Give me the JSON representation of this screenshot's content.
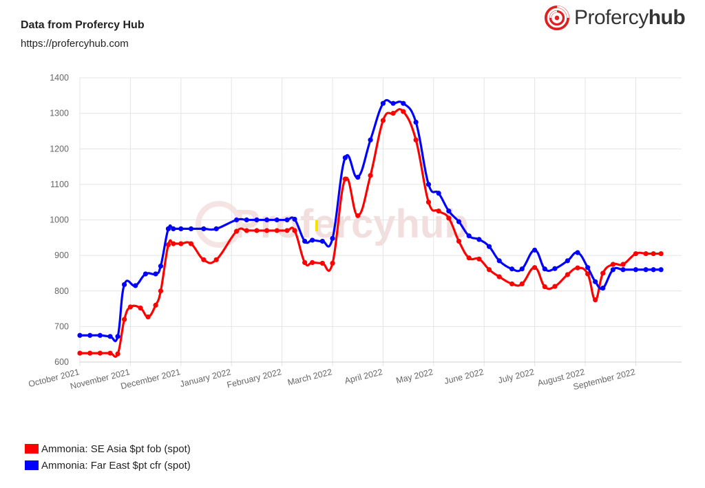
{
  "header": {
    "title": "Data from Profercy Hub",
    "url": "https://profercyhub.com"
  },
  "brand": {
    "name_part1": "Profercy",
    "name_part2": "hub",
    "logo_icon": "profercy-swirl-logo",
    "accent": "#e02020"
  },
  "chart_data": {
    "type": "line",
    "ylim": [
      600,
      1400
    ],
    "yticks": [
      600,
      700,
      800,
      900,
      1000,
      1100,
      1200,
      1300,
      1400
    ],
    "grid": true,
    "xticks": [
      "October 2021",
      "November 2021",
      "December 2021",
      "January 2022",
      "February 2022",
      "March 2022",
      "April 2022",
      "May 2022",
      "June 2022",
      "July 2022",
      "August 2022",
      "September 2022"
    ],
    "legend_position": "bottom-left",
    "series": [
      {
        "name": "Ammonia: SE Asia $pt fob (spot)",
        "color": "#ff0000",
        "points": [
          [
            0.0,
            625
          ],
          [
            0.2,
            625
          ],
          [
            0.4,
            625
          ],
          [
            0.6,
            625
          ],
          [
            0.75,
            623
          ],
          [
            0.88,
            720
          ],
          [
            1.0,
            755
          ],
          [
            1.2,
            752
          ],
          [
            1.35,
            727
          ],
          [
            1.5,
            760
          ],
          [
            1.6,
            800
          ],
          [
            1.75,
            930
          ],
          [
            1.85,
            933
          ],
          [
            2.0,
            933
          ],
          [
            2.2,
            933
          ],
          [
            2.45,
            888
          ],
          [
            2.7,
            888
          ],
          [
            3.1,
            968
          ],
          [
            3.3,
            970
          ],
          [
            3.5,
            970
          ],
          [
            3.7,
            970
          ],
          [
            3.9,
            970
          ],
          [
            4.1,
            970
          ],
          [
            4.25,
            970
          ],
          [
            4.45,
            880
          ],
          [
            4.6,
            880
          ],
          [
            4.8,
            878
          ],
          [
            5.0,
            878
          ],
          [
            5.25,
            1115
          ],
          [
            5.5,
            1012
          ],
          [
            5.75,
            1125
          ],
          [
            6.0,
            1280
          ],
          [
            6.2,
            1300
          ],
          [
            6.4,
            1305
          ],
          [
            6.65,
            1225
          ],
          [
            6.9,
            1050
          ],
          [
            7.1,
            1025
          ],
          [
            7.3,
            1005
          ],
          [
            7.5,
            940
          ],
          [
            7.7,
            893
          ],
          [
            7.9,
            890
          ],
          [
            8.1,
            860
          ],
          [
            8.3,
            840
          ],
          [
            8.55,
            820
          ],
          [
            8.75,
            820
          ],
          [
            9.0,
            866
          ],
          [
            9.2,
            812
          ],
          [
            9.4,
            813
          ],
          [
            9.65,
            846
          ],
          [
            9.85,
            865
          ],
          [
            10.05,
            848
          ],
          [
            10.2,
            775
          ],
          [
            10.35,
            850
          ],
          [
            10.55,
            875
          ],
          [
            10.75,
            875
          ],
          [
            11.0,
            905
          ],
          [
            11.2,
            905
          ],
          [
            11.35,
            905
          ],
          [
            11.5,
            905
          ]
        ]
      },
      {
        "name": "Ammonia: Far East $pt cfr (spot)",
        "color": "#0000ff",
        "points": [
          [
            0.0,
            675
          ],
          [
            0.2,
            675
          ],
          [
            0.4,
            675
          ],
          [
            0.6,
            672
          ],
          [
            0.75,
            672
          ],
          [
            0.88,
            818
          ],
          [
            1.1,
            815
          ],
          [
            1.3,
            848
          ],
          [
            1.5,
            848
          ],
          [
            1.6,
            870
          ],
          [
            1.75,
            975
          ],
          [
            1.85,
            975
          ],
          [
            2.0,
            975
          ],
          [
            2.2,
            975
          ],
          [
            2.45,
            975
          ],
          [
            2.7,
            975
          ],
          [
            3.1,
            1000
          ],
          [
            3.3,
            1000
          ],
          [
            3.5,
            1000
          ],
          [
            3.7,
            1000
          ],
          [
            3.9,
            1000
          ],
          [
            4.1,
            1000
          ],
          [
            4.25,
            1002
          ],
          [
            4.45,
            940
          ],
          [
            4.6,
            943
          ],
          [
            4.8,
            940
          ],
          [
            5.0,
            948
          ],
          [
            5.25,
            1175
          ],
          [
            5.5,
            1120
          ],
          [
            5.75,
            1225
          ],
          [
            6.0,
            1328
          ],
          [
            6.2,
            1328
          ],
          [
            6.4,
            1328
          ],
          [
            6.65,
            1275
          ],
          [
            6.9,
            1100
          ],
          [
            7.1,
            1075
          ],
          [
            7.3,
            1025
          ],
          [
            7.5,
            995
          ],
          [
            7.7,
            955
          ],
          [
            7.9,
            945
          ],
          [
            8.1,
            925
          ],
          [
            8.3,
            885
          ],
          [
            8.55,
            862
          ],
          [
            8.75,
            862
          ],
          [
            9.0,
            915
          ],
          [
            9.2,
            862
          ],
          [
            9.4,
            863
          ],
          [
            9.65,
            885
          ],
          [
            9.85,
            908
          ],
          [
            10.05,
            866
          ],
          [
            10.2,
            826
          ],
          [
            10.35,
            808
          ],
          [
            10.55,
            860
          ],
          [
            10.75,
            860
          ],
          [
            11.0,
            860
          ],
          [
            11.2,
            860
          ],
          [
            11.35,
            860
          ],
          [
            11.5,
            860
          ]
        ]
      }
    ]
  },
  "legend": {
    "items": [
      {
        "label": "Ammonia: SE Asia $pt fob (spot)",
        "color": "#ff0000"
      },
      {
        "label": "Ammonia: Far East $pt cfr (spot)",
        "color": "#0000ff"
      }
    ]
  },
  "watermark": "Profercyhub"
}
